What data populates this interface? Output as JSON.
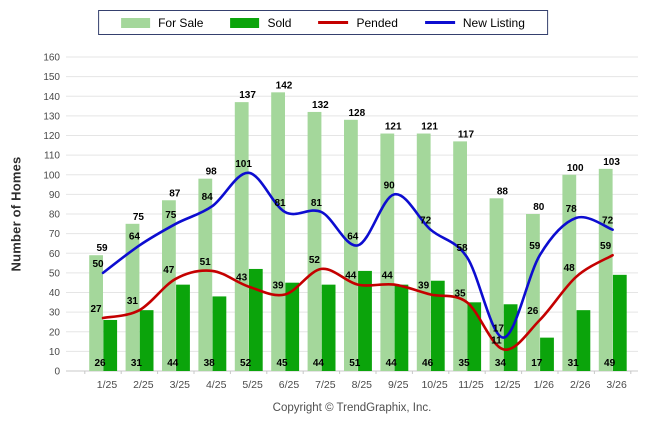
{
  "chart_data": {
    "type": "bar",
    "subtype": "combo-bar-line",
    "title": "",
    "xlabel": "",
    "ylabel": "Number of Homes",
    "ylim": [
      0,
      160
    ],
    "ytick_step": 10,
    "grid": true,
    "legend_position": "top",
    "categories": [
      "1/25",
      "2/25",
      "3/25",
      "4/25",
      "5/25",
      "6/25",
      "7/25",
      "8/25",
      "9/25",
      "10/25",
      "11/25",
      "12/25",
      "1/26",
      "2/26",
      "3/26"
    ],
    "series": [
      {
        "name": "For Sale",
        "render": "bar",
        "color": "#A4D79B",
        "values": [
          59,
          75,
          87,
          98,
          137,
          142,
          132,
          128,
          121,
          121,
          117,
          88,
          80,
          100,
          103
        ]
      },
      {
        "name": "Sold",
        "render": "bar",
        "color": "#0BA40B",
        "values": [
          26,
          31,
          44,
          38,
          52,
          45,
          44,
          51,
          44,
          46,
          35,
          34,
          17,
          31,
          49
        ]
      },
      {
        "name": "Pended",
        "render": "line",
        "color": "#C40000",
        "values": [
          27,
          31,
          47,
          51,
          43,
          39,
          52,
          44,
          44,
          39,
          35,
          11,
          26,
          48,
          59
        ]
      },
      {
        "name": "New Listing",
        "render": "line",
        "color": "#0D0DD0",
        "values": [
          50,
          64,
          75,
          84,
          101,
          81,
          81,
          64,
          90,
          72,
          58,
          17,
          59,
          78,
          72
        ]
      }
    ]
  },
  "footer": {
    "copyright": "Copyright © TrendGraphix, Inc."
  },
  "style": {
    "gridline_color": "#E5E5E5",
    "axis_line_color": "#C8C8C8",
    "tick_label_color": "#4a4a4a",
    "value_label_color": "#000000"
  }
}
